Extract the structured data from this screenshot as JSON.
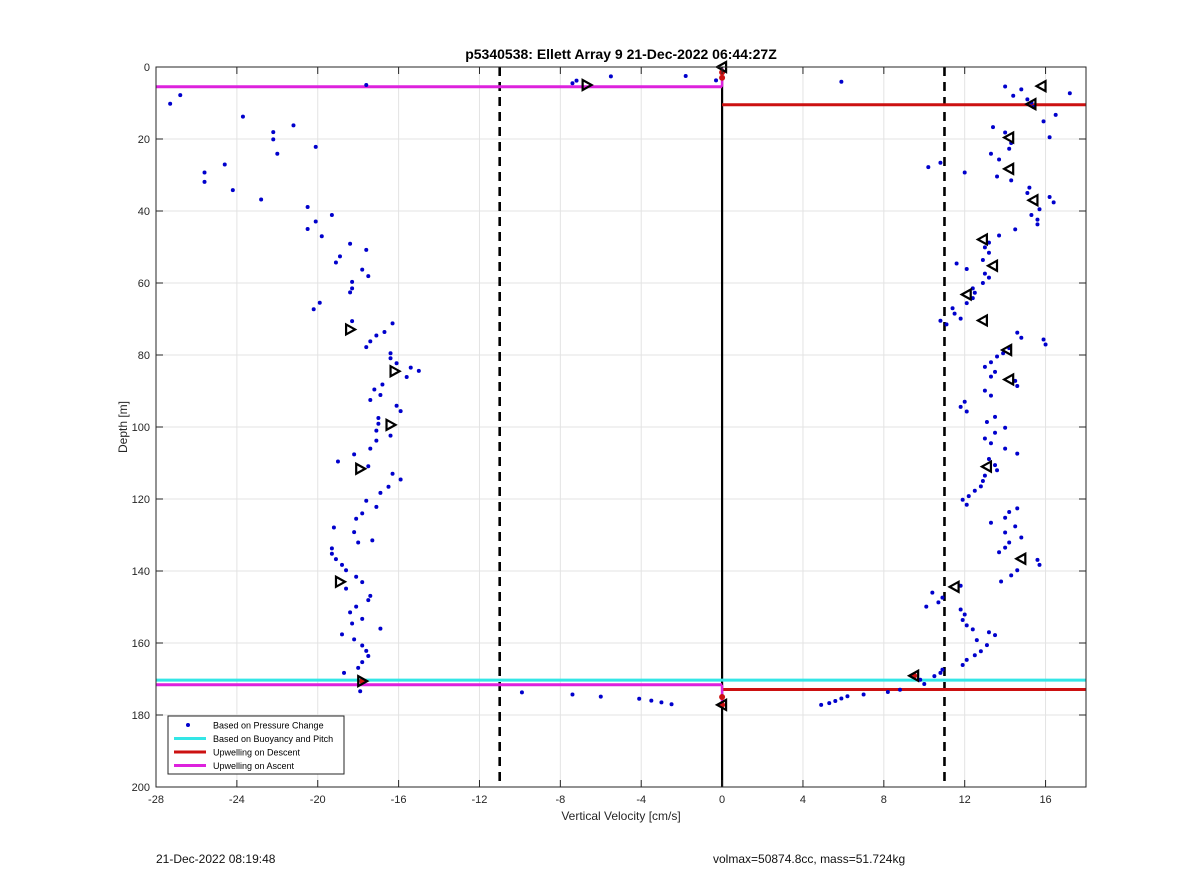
{
  "chart_data": {
    "type": "scatter",
    "title": "p5340538: Ellett Array 9 21-Dec-2022 06:44:27Z",
    "xlabel": "Vertical Velocity [cm/s]",
    "ylabel": "Depth [m]",
    "xlim": [
      -28,
      18
    ],
    "ylim": [
      0,
      200
    ],
    "y_reversed": true,
    "grid": true,
    "x_ticks": [
      -28,
      -24,
      -20,
      -16,
      -12,
      -8,
      -4,
      0,
      4,
      8,
      12,
      16
    ],
    "y_ticks": [
      0,
      20,
      40,
      60,
      80,
      100,
      120,
      140,
      160,
      180,
      200
    ],
    "legend_position": "bottom-left",
    "legend": [
      {
        "label": "Based on Pressure Change",
        "color": "#0000cc",
        "style": "point"
      },
      {
        "label": "Based on Buoyancy and Pitch",
        "color": "#33e6e6",
        "style": "line"
      },
      {
        "label": "Upwelling on Descent",
        "color": "#cc1111",
        "style": "line"
      },
      {
        "label": "Upwelling on Ascent",
        "color": "#dd22dd",
        "style": "line"
      }
    ],
    "reference_lines": [
      {
        "x": -11,
        "style": "dashed",
        "color": "#000000"
      },
      {
        "x": 11,
        "style": "dashed",
        "color": "#000000"
      },
      {
        "x": 0,
        "style": "solid",
        "color": "#000000"
      }
    ],
    "horizontal_lines": [
      {
        "name": "Upwelling on Ascent",
        "y": 5.5,
        "x_range": [
          -28,
          0
        ],
        "color": "#dd22dd"
      },
      {
        "name": "Upwelling on Descent",
        "y": 10.5,
        "x_range": [
          0,
          18
        ],
        "color": "#cc1111"
      },
      {
        "name": "Based on Buoyancy and Pitch",
        "y": 170.3,
        "x_range": [
          -28,
          18
        ],
        "color": "#33e6e6"
      },
      {
        "name": "Upwelling on Ascent",
        "y": 171.6,
        "x_range": [
          -28,
          0
        ],
        "color": "#dd22dd"
      },
      {
        "name": "Upwelling on Descent",
        "y": 172.9,
        "x_range": [
          0,
          18
        ],
        "color": "#cc1111"
      }
    ],
    "series": [
      {
        "name": "Based on Pressure Change",
        "color": "#0000cc",
        "points": [
          [
            -27.3,
            10.2
          ],
          [
            -26.8,
            7.8
          ],
          [
            -17.6,
            5.0
          ],
          [
            -23.7,
            13.8
          ],
          [
            -21.2,
            16.2
          ],
          [
            -22.2,
            18.1
          ],
          [
            -22.2,
            20.1
          ],
          [
            -20.1,
            22.2
          ],
          [
            -22.0,
            24.1
          ],
          [
            -24.6,
            27.1
          ],
          [
            -25.6,
            29.3
          ],
          [
            -25.6,
            31.9
          ],
          [
            -24.2,
            34.2
          ],
          [
            -22.8,
            36.8
          ],
          [
            -20.5,
            38.9
          ],
          [
            -19.3,
            41.1
          ],
          [
            -20.1,
            42.9
          ],
          [
            -20.5,
            45.0
          ],
          [
            -19.8,
            47.0
          ],
          [
            -18.4,
            49.1
          ],
          [
            -17.6,
            50.8
          ],
          [
            -18.9,
            52.6
          ],
          [
            -19.1,
            54.3
          ],
          [
            -17.8,
            56.3
          ],
          [
            -17.5,
            58.1
          ],
          [
            -18.3,
            59.7
          ],
          [
            -18.3,
            61.5
          ],
          [
            -18.4,
            62.6
          ],
          [
            -19.9,
            65.5
          ],
          [
            -20.2,
            67.3
          ],
          [
            -18.3,
            70.6
          ],
          [
            -16.3,
            71.2
          ],
          [
            -16.7,
            73.6
          ],
          [
            -17.1,
            74.6
          ],
          [
            -17.4,
            76.2
          ],
          [
            -17.6,
            77.8
          ],
          [
            -16.4,
            79.5
          ],
          [
            -16.4,
            80.9
          ],
          [
            -16.1,
            82.3
          ],
          [
            -15.4,
            83.5
          ],
          [
            -15.0,
            84.4
          ],
          [
            -15.6,
            86.1
          ],
          [
            -16.8,
            88.2
          ],
          [
            -17.2,
            89.6
          ],
          [
            -16.9,
            91.1
          ],
          [
            -17.4,
            92.5
          ],
          [
            -16.1,
            94.1
          ],
          [
            -15.9,
            95.6
          ],
          [
            -17.0,
            97.5
          ],
          [
            -17.0,
            99.1
          ],
          [
            -17.1,
            101.0
          ],
          [
            -16.4,
            102.4
          ],
          [
            -17.1,
            103.8
          ],
          [
            -17.4,
            106.0
          ],
          [
            -18.2,
            107.6
          ],
          [
            -19.0,
            109.6
          ],
          [
            -17.5,
            110.9
          ],
          [
            -16.3,
            113.0
          ],
          [
            -15.9,
            114.6
          ],
          [
            -16.5,
            116.6
          ],
          [
            -16.9,
            118.3
          ],
          [
            -17.6,
            120.5
          ],
          [
            -17.1,
            122.2
          ],
          [
            -17.8,
            124.0
          ],
          [
            -18.1,
            125.5
          ],
          [
            -19.2,
            127.9
          ],
          [
            -18.2,
            129.2
          ],
          [
            -17.3,
            131.5
          ],
          [
            -18.0,
            132.1
          ],
          [
            -19.3,
            133.7
          ],
          [
            -19.3,
            135.2
          ],
          [
            -19.1,
            136.7
          ],
          [
            -18.8,
            138.3
          ],
          [
            -18.6,
            139.8
          ],
          [
            -18.1,
            141.6
          ],
          [
            -17.8,
            143.1
          ],
          [
            -18.6,
            144.9
          ],
          [
            -17.4,
            146.9
          ],
          [
            -17.5,
            148.1
          ],
          [
            -18.1,
            149.9
          ],
          [
            -18.4,
            151.5
          ],
          [
            -17.8,
            153.3
          ],
          [
            -18.3,
            154.6
          ],
          [
            -16.9,
            156.0
          ],
          [
            -18.8,
            157.6
          ],
          [
            -18.2,
            159.0
          ],
          [
            -17.8,
            160.7
          ],
          [
            -17.6,
            162.2
          ],
          [
            -17.5,
            163.6
          ],
          [
            -17.8,
            165.3
          ],
          [
            -18.0,
            166.9
          ],
          [
            -18.7,
            168.3
          ],
          [
            -17.9,
            173.4
          ],
          [
            -7.2,
            3.8
          ],
          [
            -7.4,
            4.5
          ],
          [
            -5.5,
            2.6
          ],
          [
            -1.8,
            2.5
          ],
          [
            -0.3,
            3.7
          ],
          [
            5.9,
            4.1
          ],
          [
            -9.9,
            173.7
          ],
          [
            -7.4,
            174.3
          ],
          [
            -6.0,
            174.9
          ],
          [
            -4.1,
            175.5
          ],
          [
            -3.5,
            176.0
          ],
          [
            -3.0,
            176.5
          ],
          [
            -2.5,
            177.0
          ],
          [
            4.9,
            177.2
          ],
          [
            5.3,
            176.7
          ],
          [
            5.6,
            176.1
          ],
          [
            5.9,
            175.4
          ],
          [
            6.2,
            174.8
          ],
          [
            7.0,
            174.3
          ],
          [
            8.2,
            173.6
          ],
          [
            8.8,
            173.0
          ],
          [
            14.0,
            5.4
          ],
          [
            14.8,
            6.2
          ],
          [
            14.4,
            8.0
          ],
          [
            15.1,
            9.0
          ],
          [
            15.3,
            9.9
          ],
          [
            15.4,
            11.1
          ],
          [
            16.5,
            13.3
          ],
          [
            17.2,
            7.3
          ],
          [
            15.9,
            15.1
          ],
          [
            13.4,
            16.7
          ],
          [
            14.0,
            18.2
          ],
          [
            16.2,
            19.5
          ],
          [
            14.3,
            21.1
          ],
          [
            14.2,
            22.7
          ],
          [
            13.3,
            24.1
          ],
          [
            13.7,
            25.7
          ],
          [
            10.8,
            26.6
          ],
          [
            10.2,
            27.8
          ],
          [
            12.0,
            29.3
          ],
          [
            13.6,
            30.4
          ],
          [
            14.3,
            31.5
          ],
          [
            15.2,
            33.5
          ],
          [
            15.1,
            35.0
          ],
          [
            16.2,
            36.1
          ],
          [
            16.4,
            37.6
          ],
          [
            15.7,
            39.5
          ],
          [
            15.3,
            41.1
          ],
          [
            15.6,
            42.4
          ],
          [
            15.6,
            43.7
          ],
          [
            14.5,
            45.1
          ],
          [
            13.7,
            46.8
          ],
          [
            13.2,
            48.8
          ],
          [
            13.0,
            50.1
          ],
          [
            13.2,
            51.6
          ],
          [
            12.9,
            53.6
          ],
          [
            11.6,
            54.6
          ],
          [
            12.1,
            56.1
          ],
          [
            13.0,
            57.4
          ],
          [
            13.2,
            58.5
          ],
          [
            12.9,
            60.0
          ],
          [
            12.4,
            61.5
          ],
          [
            12.5,
            62.7
          ],
          [
            12.4,
            64.2
          ],
          [
            12.1,
            65.6
          ],
          [
            11.4,
            67.0
          ],
          [
            11.5,
            68.5
          ],
          [
            11.8,
            69.9
          ],
          [
            10.8,
            70.5
          ],
          [
            11.1,
            71.5
          ],
          [
            14.6,
            73.8
          ],
          [
            14.8,
            75.2
          ],
          [
            15.9,
            75.7
          ],
          [
            16.0,
            77.1
          ],
          [
            14.2,
            78.1
          ],
          [
            13.9,
            79.5
          ],
          [
            13.6,
            80.4
          ],
          [
            13.3,
            82.0
          ],
          [
            13.0,
            83.3
          ],
          [
            13.5,
            84.7
          ],
          [
            13.3,
            86.0
          ],
          [
            14.5,
            87.2
          ],
          [
            14.6,
            88.6
          ],
          [
            13.0,
            89.9
          ],
          [
            13.3,
            91.3
          ],
          [
            12.0,
            93.0
          ],
          [
            11.8,
            94.4
          ],
          [
            12.1,
            95.7
          ],
          [
            13.5,
            97.2
          ],
          [
            13.1,
            98.6
          ],
          [
            14.0,
            100.2
          ],
          [
            13.5,
            101.6
          ],
          [
            13.0,
            103.2
          ],
          [
            13.3,
            104.5
          ],
          [
            14.0,
            106.0
          ],
          [
            14.6,
            107.4
          ],
          [
            13.2,
            108.9
          ],
          [
            13.5,
            110.6
          ],
          [
            13.6,
            112.0
          ],
          [
            13.0,
            113.5
          ],
          [
            12.9,
            115.0
          ],
          [
            12.8,
            116.5
          ],
          [
            12.5,
            117.7
          ],
          [
            12.2,
            119.2
          ],
          [
            11.9,
            120.2
          ],
          [
            12.1,
            121.6
          ],
          [
            14.6,
            122.6
          ],
          [
            14.2,
            123.6
          ],
          [
            14.0,
            125.2
          ],
          [
            13.3,
            126.6
          ],
          [
            14.5,
            127.6
          ],
          [
            14.0,
            129.3
          ],
          [
            14.8,
            130.7
          ],
          [
            14.2,
            132.1
          ],
          [
            14.0,
            133.5
          ],
          [
            13.7,
            134.8
          ],
          [
            15.6,
            136.9
          ],
          [
            15.7,
            138.3
          ],
          [
            14.6,
            139.8
          ],
          [
            14.3,
            141.2
          ],
          [
            13.8,
            142.9
          ],
          [
            11.8,
            144.1
          ],
          [
            10.4,
            146.0
          ],
          [
            10.9,
            147.4
          ],
          [
            10.7,
            148.7
          ],
          [
            10.1,
            149.9
          ],
          [
            11.8,
            150.7
          ],
          [
            12.0,
            152.1
          ],
          [
            11.9,
            153.6
          ],
          [
            12.1,
            155.1
          ],
          [
            12.4,
            156.2
          ],
          [
            13.2,
            157.0
          ],
          [
            13.5,
            157.8
          ],
          [
            12.6,
            159.2
          ],
          [
            13.1,
            160.6
          ],
          [
            12.8,
            162.3
          ],
          [
            12.5,
            163.4
          ],
          [
            12.1,
            164.7
          ],
          [
            11.9,
            166.1
          ],
          [
            10.9,
            167.4
          ],
          [
            10.8,
            168.3
          ],
          [
            10.5,
            169.2
          ],
          [
            9.8,
            170.2
          ],
          [
            10.0,
            171.4
          ]
        ]
      }
    ],
    "markers": {
      "style": "triangle",
      "points": [
        [
          0,
          0
        ],
        [
          15.8,
          5.3
        ],
        [
          15.3,
          10.3
        ],
        [
          14.2,
          19.6
        ],
        [
          14.2,
          28.3
        ],
        [
          15.4,
          37.0
        ],
        [
          12.9,
          47.9
        ],
        [
          13.4,
          55.2
        ],
        [
          12.1,
          63.2
        ],
        [
          12.9,
          70.4
        ],
        [
          14.1,
          78.6
        ],
        [
          14.2,
          86.8
        ],
        [
          13.1,
          111.0
        ],
        [
          14.8,
          136.6
        ],
        [
          11.5,
          144.4
        ],
        [
          -6.7,
          5.0
        ],
        [
          -18.4,
          72.9
        ],
        [
          -16.2,
          84.5
        ],
        [
          -16.4,
          99.4
        ],
        [
          -17.9,
          111.6
        ],
        [
          -18.9,
          143.0
        ],
        [
          -17.8,
          170.6
        ],
        [
          9.5,
          169.1
        ],
        [
          0,
          177.2
        ]
      ]
    },
    "highlight_points": [
      [
        -17.8,
        170.6
      ],
      [
        9.5,
        169.1
      ],
      [
        0,
        177.2
      ],
      [
        0,
        1.5
      ],
      [
        0,
        3.0
      ],
      [
        0,
        175.0
      ]
    ]
  },
  "footer": {
    "left": "21-Dec-2022 08:19:48",
    "right": "volmax=50874.8cc, mass=51.724kg"
  }
}
